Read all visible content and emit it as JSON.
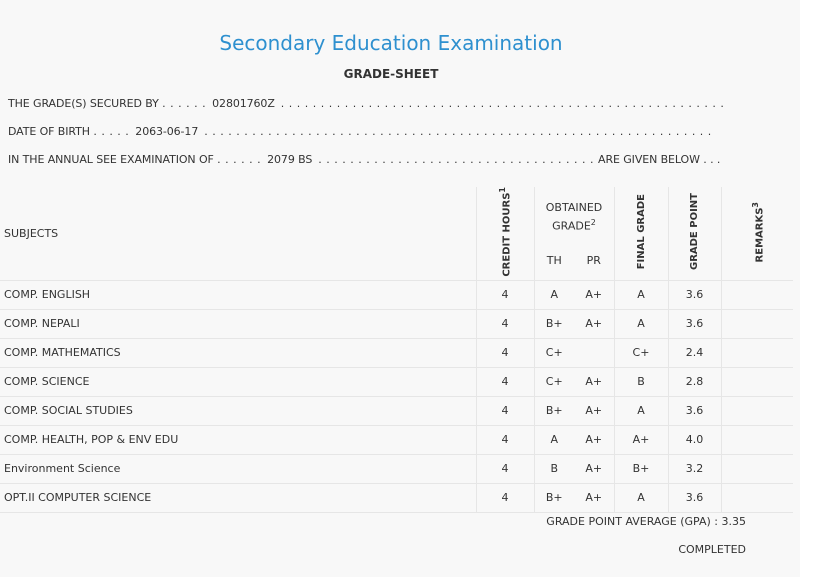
{
  "header": {
    "title": "Secondary Education Examination",
    "subtitle": "GRADE-SHEET"
  },
  "info": {
    "secured_by_label": "THE GRADE(S) SECURED BY",
    "secured_by_value": "02801760Z",
    "dob_label": "DATE OF BIRTH",
    "dob_value": "2063-06-17",
    "exam_label": "IN THE ANNUAL SEE EXAMINATION OF",
    "exam_value": "2079 BS",
    "exam_suffix": "ARE GIVEN BELOW . . ."
  },
  "table": {
    "headers": {
      "subjects": "SUBJECTS",
      "credit_hours": "CREDIT HOURS",
      "credit_sup": "1",
      "obtained_grade": "OBTAINED GRADE",
      "obtained_sup": "2",
      "th": "TH",
      "pr": "PR",
      "final_grade": "FINAL GRADE",
      "grade_point": "GRADE POINT",
      "remarks": "REMARKS",
      "remarks_sup": "3"
    },
    "rows": [
      {
        "subject": "COMP. ENGLISH",
        "credit": "4",
        "th": "A",
        "pr": "A+",
        "final": "A",
        "gp": "3.6",
        "remarks": ""
      },
      {
        "subject": "COMP. NEPALI",
        "credit": "4",
        "th": "B+",
        "pr": "A+",
        "final": "A",
        "gp": "3.6",
        "remarks": ""
      },
      {
        "subject": "COMP. MATHEMATICS",
        "credit": "4",
        "th": "C+",
        "pr": "",
        "final": "C+",
        "gp": "2.4",
        "remarks": ""
      },
      {
        "subject": "COMP. SCIENCE",
        "credit": "4",
        "th": "C+",
        "pr": "A+",
        "final": "B",
        "gp": "2.8",
        "remarks": ""
      },
      {
        "subject": "COMP. SOCIAL STUDIES",
        "credit": "4",
        "th": "B+",
        "pr": "A+",
        "final": "A",
        "gp": "3.6",
        "remarks": ""
      },
      {
        "subject": "COMP. HEALTH, POP & ENV EDU",
        "credit": "4",
        "th": "A",
        "pr": "A+",
        "final": "A+",
        "gp": "4.0",
        "remarks": ""
      },
      {
        "subject": "Environment Science",
        "credit": "4",
        "th": "B",
        "pr": "A+",
        "final": "B+",
        "gp": "3.2",
        "remarks": ""
      },
      {
        "subject": "OPT.II COMPUTER SCIENCE",
        "credit": "4",
        "th": "B+",
        "pr": "A+",
        "final": "A",
        "gp": "3.6",
        "remarks": ""
      }
    ]
  },
  "summary": {
    "gpa_label": "GRADE POINT AVERAGE (GPA) :",
    "gpa_value": "3.35",
    "status": "COMPLETED"
  },
  "colors": {
    "title": "#2e90cf",
    "background": "#f8f8f8",
    "text": "#333333",
    "rule": "#e6e6e6"
  }
}
